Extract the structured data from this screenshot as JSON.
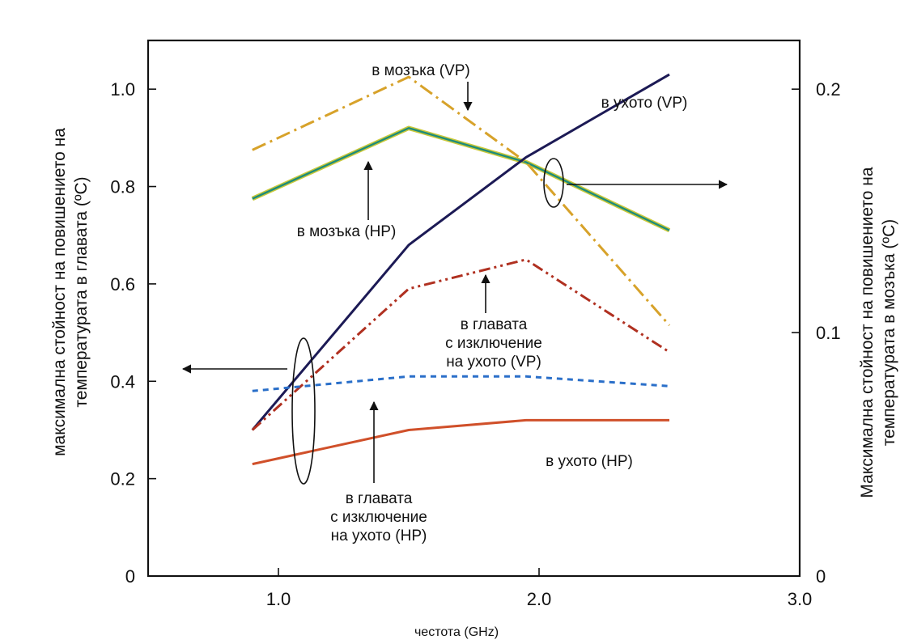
{
  "chart_data": {
    "type": "line",
    "xlabel": "честота (GHz)",
    "ylabel_left": "максимална стойност на повишението на температурата в главата (ºC)",
    "ylabel_left_lines": [
      "максимална стойност на повишението на",
      "температурата в главата (ºC)"
    ],
    "ylabel_right": "Максимална стойност на повишението на температурата в мозъка (ºC)",
    "ylabel_right_lines": [
      "Максимална стойност на повишението на",
      "температурата в мозъка (ºC)"
    ],
    "xlim": [
      0.5,
      3.0
    ],
    "ylim_left": [
      0,
      1.1
    ],
    "ylim_right": [
      0,
      0.22
    ],
    "x_ticks": [
      "1.0",
      "2.0",
      "3.0"
    ],
    "x_tick_values": [
      1.0,
      2.0,
      3.0
    ],
    "y_left_ticks": [
      "0",
      "0.2",
      "0.4",
      "0.6",
      "0.8",
      "1.0"
    ],
    "y_left_tick_values": [
      0,
      0.2,
      0.4,
      0.6,
      0.8,
      1.0
    ],
    "y_right_ticks": [
      "0",
      "0.1",
      "0.2"
    ],
    "y_right_tick_values": [
      0,
      0.1,
      0.2
    ],
    "series": [
      {
        "name": "в мозъка (HP)",
        "axis": "right",
        "style": "double-solid",
        "color": "#1e8c7a",
        "color2": "#c9c83a",
        "x": [
          0.9,
          1.5,
          1.95,
          2.5
        ],
        "y": [
          0.155,
          0.184,
          0.17,
          0.142
        ]
      },
      {
        "name": "в мозъка (VP)",
        "axis": "right",
        "style": "dashdot",
        "color": "#d7a22a",
        "x": [
          0.9,
          1.5,
          1.95,
          2.5
        ],
        "y": [
          0.175,
          0.205,
          0.17,
          0.103
        ]
      },
      {
        "name": "в ухото (VP)",
        "axis": "left",
        "style": "solid",
        "color": "#1c1a55",
        "x": [
          0.9,
          1.5,
          1.95,
          2.5
        ],
        "y": [
          0.3,
          0.68,
          0.86,
          1.03
        ]
      },
      {
        "name": "в главата с изключение на ухото (VP)",
        "axis": "left",
        "style": "dashdotdot",
        "color": "#b03020",
        "x": [
          0.9,
          1.5,
          1.95,
          2.5
        ],
        "y": [
          0.3,
          0.59,
          0.65,
          0.46
        ]
      },
      {
        "name": "в главата с изключение на ухото (HP)",
        "axis": "left",
        "style": "dashed",
        "color": "#2a6fc9",
        "x": [
          0.9,
          1.5,
          1.95,
          2.5
        ],
        "y": [
          0.38,
          0.41,
          0.41,
          0.39
        ]
      },
      {
        "name": "в ухото (HP)",
        "axis": "left",
        "style": "solid",
        "color": "#d0502a",
        "x": [
          0.9,
          1.5,
          1.95,
          2.5
        ],
        "y": [
          0.23,
          0.3,
          0.32,
          0.32
        ]
      }
    ],
    "annotations": [
      {
        "id": "vp-brain",
        "lines": [
          "в мозъка (VP)"
        ]
      },
      {
        "id": "vp-ear",
        "lines": [
          "в ухото (VP)"
        ]
      },
      {
        "id": "hp-brain",
        "lines": [
          "в мозъка (HP)"
        ]
      },
      {
        "id": "vp-head",
        "lines": [
          "в главата",
          "с изключение",
          "на ухото (VP)"
        ]
      },
      {
        "id": "hp-ear",
        "lines": [
          "в ухото (HP)"
        ]
      },
      {
        "id": "hp-head",
        "lines": [
          "в главата",
          "с изключение",
          "на ухото (HP)"
        ]
      }
    ]
  }
}
